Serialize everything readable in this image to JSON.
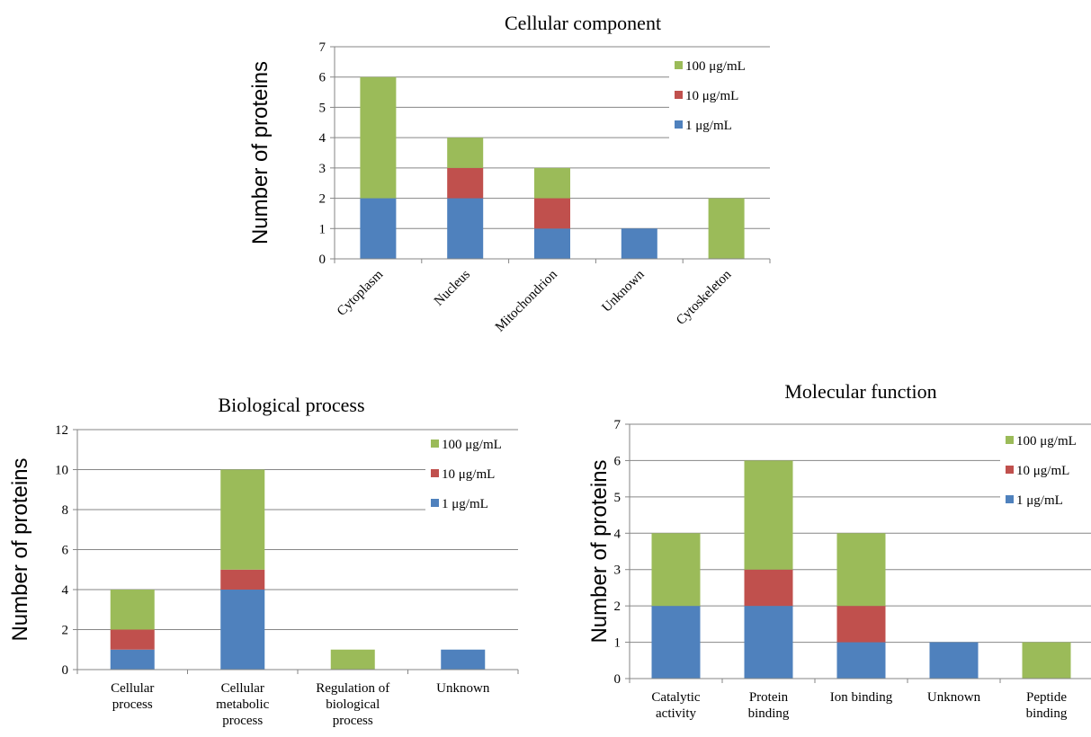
{
  "colors": {
    "s1": "#4f81bd",
    "s10": "#c0504d",
    "s100": "#9bbb59",
    "grid": "#868686",
    "axis": "#868686"
  },
  "chart_data": [
    {
      "type": "bar",
      "stacked": true,
      "title": "Cellular component",
      "ylabel": "Number of proteins",
      "xlabel": "",
      "ylim": [
        0,
        7
      ],
      "yticks": [
        0,
        1,
        2,
        3,
        4,
        5,
        6,
        7
      ],
      "categories": [
        "Cytoplasm",
        "Nucleus",
        "Mitochondrion",
        "Unknown",
        "Cytoskeleton"
      ],
      "category_label_style": "rotated",
      "series": [
        {
          "name": "1 μg/mL",
          "color": "#4f81bd",
          "values": [
            2,
            2,
            1,
            1,
            0
          ]
        },
        {
          "name": "10 μg/mL",
          "color": "#c0504d",
          "values": [
            0,
            1,
            1,
            0,
            0
          ]
        },
        {
          "name": "100 μg/mL",
          "color": "#9bbb59",
          "values": [
            4,
            1,
            1,
            0,
            2
          ]
        }
      ],
      "grid": true,
      "legend": "top-right"
    },
    {
      "type": "bar",
      "stacked": true,
      "title": "Biological process",
      "ylabel": "Number of proteins",
      "xlabel": "",
      "ylim": [
        0,
        12
      ],
      "yticks": [
        0,
        2,
        4,
        6,
        8,
        10,
        12
      ],
      "categories": [
        [
          "Cellular",
          "process"
        ],
        [
          "Cellular",
          "metabolic",
          "process"
        ],
        [
          "Regulation of",
          "biological",
          "process"
        ],
        [
          "Unknown"
        ]
      ],
      "category_label_style": "wrapped",
      "series": [
        {
          "name": "1 μg/mL",
          "color": "#4f81bd",
          "values": [
            1,
            4,
            0,
            1
          ]
        },
        {
          "name": "10 μg/mL",
          "color": "#c0504d",
          "values": [
            1,
            1,
            0,
            0
          ]
        },
        {
          "name": "100 μg/mL",
          "color": "#9bbb59",
          "values": [
            2,
            5,
            1,
            0
          ]
        }
      ],
      "grid": true,
      "legend": "top-right"
    },
    {
      "type": "bar",
      "stacked": true,
      "title": "Molecular function",
      "ylabel": "Number of proteins",
      "xlabel": "",
      "ylim": [
        0,
        7
      ],
      "yticks": [
        0,
        1,
        2,
        3,
        4,
        5,
        6,
        7
      ],
      "categories": [
        [
          "Catalytic",
          "activity"
        ],
        [
          "Protein",
          "binding"
        ],
        [
          "Ion binding"
        ],
        [
          "Unknown"
        ],
        [
          "Peptide",
          "binding"
        ]
      ],
      "category_label_style": "wrapped",
      "series": [
        {
          "name": "1 μg/mL",
          "color": "#4f81bd",
          "values": [
            2,
            2,
            1,
            1,
            0
          ]
        },
        {
          "name": "10 μg/mL",
          "color": "#c0504d",
          "values": [
            0,
            1,
            1,
            0,
            0
          ]
        },
        {
          "name": "100 μg/mL",
          "color": "#9bbb59",
          "values": [
            2,
            3,
            2,
            0,
            1
          ]
        }
      ],
      "grid": true,
      "legend": "top-right"
    }
  ]
}
